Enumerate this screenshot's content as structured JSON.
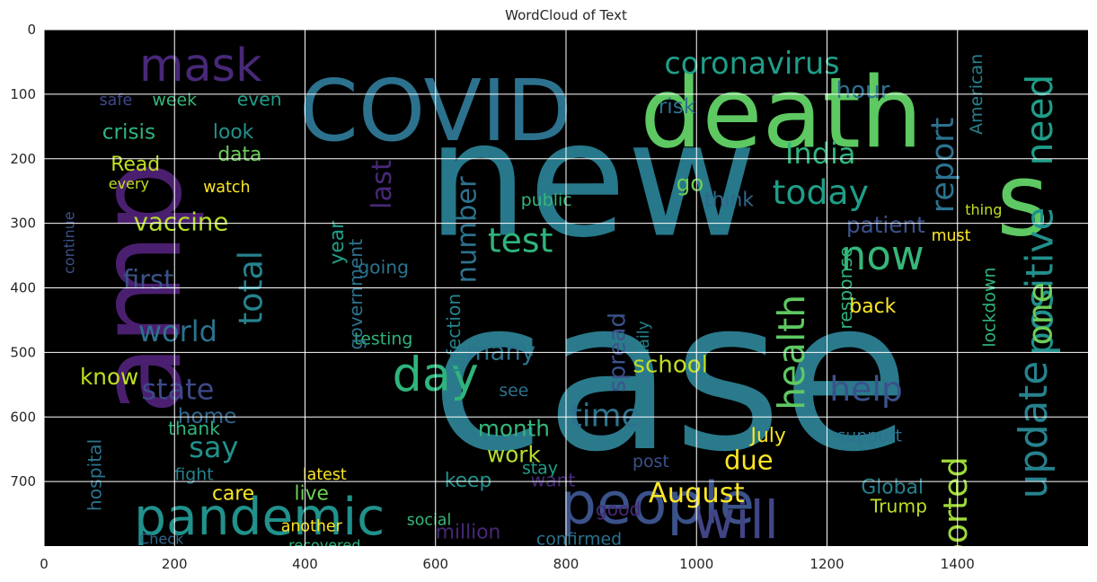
{
  "chart_data": {
    "type": "wordcloud",
    "title": "WordCloud of Text",
    "xlabel": "",
    "ylabel": "",
    "xlim": [
      0,
      1600
    ],
    "ylim": [
      800,
      0
    ],
    "xticks": [
      0,
      200,
      400,
      600,
      800,
      1000,
      1200,
      1400
    ],
    "yticks": [
      0,
      100,
      200,
      300,
      400,
      500,
      600,
      700
    ],
    "grid": true,
    "background": "#000000",
    "colormap": "viridis",
    "words": [
      {
        "text": "case",
        "x": 960,
        "y": 560,
        "size": 320,
        "color": "#2a7a8c",
        "rot": 0
      },
      {
        "text": "new",
        "x": 840,
        "y": 250,
        "size": 245,
        "color": "#26788a",
        "rot": 0
      },
      {
        "text": "amp",
        "x": 160,
        "y": 400,
        "size": 175,
        "color": "#4b1f6f",
        "rot": -90
      },
      {
        "text": "death",
        "x": 1130,
        "y": 140,
        "size": 150,
        "color": "#5ec962",
        "rot": 0
      },
      {
        "text": "COVID",
        "x": 600,
        "y": 135,
        "size": 130,
        "color": "#2c728e",
        "rot": 0
      },
      {
        "text": "s",
        "x": 1500,
        "y": 275,
        "size": 155,
        "color": "#5ec962",
        "rot": 0
      },
      {
        "text": "people",
        "x": 940,
        "y": 740,
        "size": 88,
        "color": "#3b528b",
        "rot": 0
      },
      {
        "text": "pandemic",
        "x": 330,
        "y": 760,
        "size": 78,
        "color": "#21918c",
        "rot": 0
      },
      {
        "text": "will",
        "x": 1060,
        "y": 765,
        "size": 80,
        "color": "#414487",
        "rot": 0
      },
      {
        "text": "mask",
        "x": 240,
        "y": 60,
        "size": 70,
        "color": "#482878",
        "rot": 0
      },
      {
        "text": "day",
        "x": 600,
        "y": 540,
        "size": 72,
        "color": "#2fb47c",
        "rot": 0
      },
      {
        "text": "coronavirus",
        "x": 1085,
        "y": 55,
        "size": 46,
        "color": "#1f9e89",
        "rot": 0
      },
      {
        "text": "now",
        "x": 1285,
        "y": 355,
        "size": 62,
        "color": "#35b779",
        "rot": 0
      },
      {
        "text": "today",
        "x": 1190,
        "y": 255,
        "size": 52,
        "color": "#1f9e89",
        "rot": 0
      },
      {
        "text": "India",
        "x": 1190,
        "y": 195,
        "size": 44,
        "color": "#2fb47c",
        "rot": 0
      },
      {
        "text": "need",
        "x": 1530,
        "y": 140,
        "size": 56,
        "color": "#1f9e89",
        "rot": -90
      },
      {
        "text": "positive",
        "x": 1530,
        "y": 390,
        "size": 58,
        "color": "#21918c",
        "rot": -90
      },
      {
        "text": "one",
        "x": 1530,
        "y": 440,
        "size": 52,
        "color": "#6ece58",
        "rot": -90
      },
      {
        "text": "update",
        "x": 1520,
        "y": 620,
        "size": 60,
        "color": "#26828e",
        "rot": -90
      },
      {
        "text": "reported",
        "x": 1400,
        "y": 770,
        "size": 50,
        "color": "#a0da39",
        "rot": -90
      },
      {
        "text": "report",
        "x": 1380,
        "y": 210,
        "size": 48,
        "color": "#2c728e",
        "rot": -90
      },
      {
        "text": "health",
        "x": 1150,
        "y": 500,
        "size": 56,
        "color": "#5ec962",
        "rot": -90
      },
      {
        "text": "help",
        "x": 1260,
        "y": 560,
        "size": 52,
        "color": "#3b528b",
        "rot": 0
      },
      {
        "text": "test",
        "x": 730,
        "y": 330,
        "size": 52,
        "color": "#2fb47c",
        "rot": 0
      },
      {
        "text": "vaccine",
        "x": 210,
        "y": 300,
        "size": 38,
        "color": "#b5de2b",
        "rot": 0
      },
      {
        "text": "first",
        "x": 160,
        "y": 390,
        "size": 40,
        "color": "#3b528b",
        "rot": 0
      },
      {
        "text": "world",
        "x": 205,
        "y": 470,
        "size": 44,
        "color": "#2c728e",
        "rot": 0
      },
      {
        "text": "state",
        "x": 205,
        "y": 560,
        "size": 44,
        "color": "#3e4989",
        "rot": 0
      },
      {
        "text": "say",
        "x": 260,
        "y": 650,
        "size": 44,
        "color": "#21918c",
        "rot": 0
      },
      {
        "text": "total",
        "x": 320,
        "y": 400,
        "size": 50,
        "color": "#26828e",
        "rot": -90
      },
      {
        "text": "school",
        "x": 960,
        "y": 520,
        "size": 36,
        "color": "#c2df23",
        "rot": 0
      },
      {
        "text": "many",
        "x": 700,
        "y": 500,
        "size": 38,
        "color": "#2c728e",
        "rot": 0
      },
      {
        "text": "month",
        "x": 720,
        "y": 620,
        "size": 34,
        "color": "#35b779",
        "rot": 0
      },
      {
        "text": "work",
        "x": 720,
        "y": 660,
        "size": 34,
        "color": "#b5de2b",
        "rot": 0
      },
      {
        "text": "time",
        "x": 860,
        "y": 600,
        "size": 48,
        "color": "#2c728e",
        "rot": 0
      },
      {
        "text": "August",
        "x": 1000,
        "y": 720,
        "size": 42,
        "color": "#fde725",
        "rot": 0
      },
      {
        "text": "due",
        "x": 1080,
        "y": 670,
        "size": 40,
        "color": "#fde725",
        "rot": 0
      },
      {
        "text": "know",
        "x": 100,
        "y": 540,
        "size": 34,
        "color": "#c2df23",
        "rot": 0
      },
      {
        "text": "home",
        "x": 250,
        "y": 600,
        "size": 32,
        "color": "#31688e",
        "rot": 0
      },
      {
        "text": "hospital",
        "x": 80,
        "y": 690,
        "size": 28,
        "color": "#2c728e",
        "rot": -90
      },
      {
        "text": "crisis",
        "x": 130,
        "y": 160,
        "size": 32,
        "color": "#2fb47c",
        "rot": 0
      },
      {
        "text": "Read",
        "x": 140,
        "y": 210,
        "size": 30,
        "color": "#c2df23",
        "rot": 0
      },
      {
        "text": "week",
        "x": 200,
        "y": 110,
        "size": 26,
        "color": "#35b779",
        "rot": 0
      },
      {
        "text": "safe",
        "x": 110,
        "y": 110,
        "size": 24,
        "color": "#3e4989",
        "rot": 0
      },
      {
        "text": "look",
        "x": 290,
        "y": 160,
        "size": 30,
        "color": "#21918c",
        "rot": 0
      },
      {
        "text": "even",
        "x": 330,
        "y": 110,
        "size": 28,
        "color": "#1f9e89",
        "rot": 0
      },
      {
        "text": "data",
        "x": 300,
        "y": 195,
        "size": 30,
        "color": "#6ece58",
        "rot": 0
      },
      {
        "text": "hour",
        "x": 1255,
        "y": 95,
        "size": 36,
        "color": "#2c728e",
        "rot": 0
      },
      {
        "text": "risk",
        "x": 970,
        "y": 120,
        "size": 32,
        "color": "#2c728e",
        "rot": 0
      },
      {
        "text": "patient",
        "x": 1290,
        "y": 305,
        "size": 34,
        "color": "#3b528b",
        "rot": 0
      },
      {
        "text": "response",
        "x": 1230,
        "y": 400,
        "size": 28,
        "color": "#2fb47c",
        "rot": -90
      },
      {
        "text": "Global",
        "x": 1300,
        "y": 710,
        "size": 30,
        "color": "#26828e",
        "rot": 0
      },
      {
        "text": "Trump",
        "x": 1310,
        "y": 740,
        "size": 28,
        "color": "#bddf26",
        "rot": 0
      },
      {
        "text": "million",
        "x": 650,
        "y": 780,
        "size": 30,
        "color": "#482878",
        "rot": 0
      },
      {
        "text": "keep",
        "x": 650,
        "y": 700,
        "size": 30,
        "color": "#21918c",
        "rot": 0
      },
      {
        "text": "care",
        "x": 290,
        "y": 720,
        "size": 30,
        "color": "#fde725",
        "rot": 0
      },
      {
        "text": "live",
        "x": 410,
        "y": 720,
        "size": 30,
        "color": "#6ece58",
        "rot": 0
      },
      {
        "text": "testing",
        "x": 520,
        "y": 480,
        "size": 26,
        "color": "#2fb47c",
        "rot": 0
      },
      {
        "text": "spread",
        "x": 880,
        "y": 500,
        "size": 36,
        "color": "#3b528b",
        "rot": -90
      },
      {
        "text": "number",
        "x": 650,
        "y": 310,
        "size": 42,
        "color": "#2c728e",
        "rot": -90
      },
      {
        "text": "last",
        "x": 520,
        "y": 240,
        "size": 42,
        "color": "#482878",
        "rot": -90
      },
      {
        "text": "go",
        "x": 990,
        "y": 240,
        "size": 34,
        "color": "#6ece58",
        "rot": 0
      },
      {
        "text": "think",
        "x": 1050,
        "y": 265,
        "size": 30,
        "color": "#31688e",
        "rot": 0
      },
      {
        "text": "public",
        "x": 770,
        "y": 265,
        "size": 26,
        "color": "#35b779",
        "rot": 0
      },
      {
        "text": "watch",
        "x": 280,
        "y": 245,
        "size": 24,
        "color": "#fde725",
        "rot": 0
      },
      {
        "text": "every",
        "x": 130,
        "y": 240,
        "size": 22,
        "color": "#c2df23",
        "rot": 0
      },
      {
        "text": "government",
        "x": 480,
        "y": 410,
        "size": 28,
        "color": "#2c728e",
        "rot": -90
      },
      {
        "text": "going",
        "x": 520,
        "y": 370,
        "size": 28,
        "color": "#2c728e",
        "rot": 0
      },
      {
        "text": "year",
        "x": 450,
        "y": 330,
        "size": 30,
        "color": "#1f9e89",
        "rot": -90
      },
      {
        "text": "infection",
        "x": 630,
        "y": 470,
        "size": 28,
        "color": "#26828e",
        "rot": -90
      },
      {
        "text": "lockdown",
        "x": 1450,
        "y": 430,
        "size": 26,
        "color": "#2fb47c",
        "rot": -90
      },
      {
        "text": "back",
        "x": 1270,
        "y": 430,
        "size": 30,
        "color": "#fde725",
        "rot": 0
      },
      {
        "text": "thank",
        "x": 230,
        "y": 620,
        "size": 28,
        "color": "#2fb47c",
        "rot": 0
      },
      {
        "text": "fight",
        "x": 230,
        "y": 690,
        "size": 26,
        "color": "#26828e",
        "rot": 0
      },
      {
        "text": "latest",
        "x": 430,
        "y": 690,
        "size": 24,
        "color": "#fde725",
        "rot": 0
      },
      {
        "text": "another",
        "x": 410,
        "y": 770,
        "size": 24,
        "color": "#fde725",
        "rot": 0
      },
      {
        "text": "recovered",
        "x": 430,
        "y": 800,
        "size": 22,
        "color": "#2fb47c",
        "rot": 0
      },
      {
        "text": "Check",
        "x": 180,
        "y": 790,
        "size": 22,
        "color": "#31688e",
        "rot": 0
      },
      {
        "text": "confirmed",
        "x": 820,
        "y": 790,
        "size": 26,
        "color": "#2c728e",
        "rot": 0
      },
      {
        "text": "social",
        "x": 590,
        "y": 760,
        "size": 24,
        "color": "#35b779",
        "rot": 0
      },
      {
        "text": "stay",
        "x": 760,
        "y": 680,
        "size": 26,
        "color": "#1f9e89",
        "rot": 0
      },
      {
        "text": "see",
        "x": 720,
        "y": 560,
        "size": 26,
        "color": "#2c728e",
        "rot": 0
      },
      {
        "text": "want",
        "x": 780,
        "y": 700,
        "size": 28,
        "color": "#482878",
        "rot": 0
      },
      {
        "text": "July",
        "x": 1110,
        "y": 630,
        "size": 30,
        "color": "#fde725",
        "rot": 0
      },
      {
        "text": "support",
        "x": 1265,
        "y": 630,
        "size": 26,
        "color": "#2c728e",
        "rot": 0
      },
      {
        "text": "post",
        "x": 930,
        "y": 670,
        "size": 26,
        "color": "#3b528b",
        "rot": 0
      },
      {
        "text": "good",
        "x": 880,
        "y": 745,
        "size": 28,
        "color": "#482878",
        "rot": 0
      },
      {
        "text": "must",
        "x": 1390,
        "y": 320,
        "size": 24,
        "color": "#fde725",
        "rot": 0
      },
      {
        "text": "thing",
        "x": 1440,
        "y": 280,
        "size": 22,
        "color": "#c2df23",
        "rot": 0
      },
      {
        "text": "American",
        "x": 1430,
        "y": 100,
        "size": 26,
        "color": "#26828e",
        "rot": -90
      },
      {
        "text": "continue",
        "x": 40,
        "y": 330,
        "size": 22,
        "color": "#3b528b",
        "rot": -90
      },
      {
        "text": "daily",
        "x": 920,
        "y": 480,
        "size": 24,
        "color": "#26828e",
        "rot": -90
      }
    ]
  }
}
